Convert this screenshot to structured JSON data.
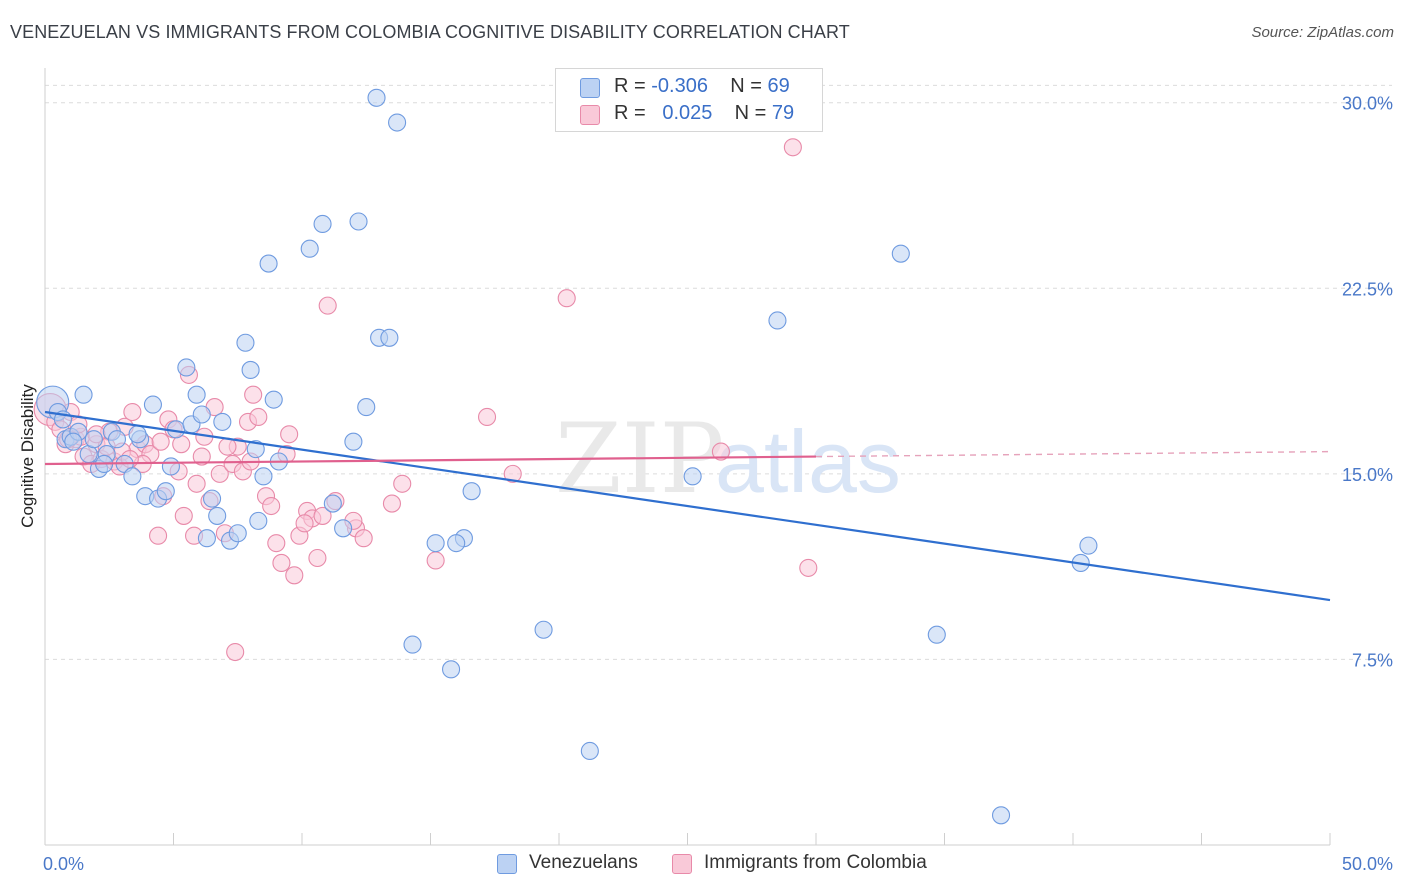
{
  "title": "VENEZUELAN VS IMMIGRANTS FROM COLOMBIA COGNITIVE DISABILITY CORRELATION CHART",
  "source": "Source: ZipAtlas.com",
  "watermark": {
    "zip": "ZIP",
    "atlas": "atlas"
  },
  "legend": {
    "r_label": "R =",
    "n_label": "N =",
    "rows": [
      {
        "r": "-0.306",
        "n": "69",
        "color": "#6f9be0",
        "fill": "#bcd2f3"
      },
      {
        "r": "0.025",
        "n": "79",
        "color": "#e88aa9",
        "fill": "#f9c9d8"
      }
    ]
  },
  "bottom_legend": [
    {
      "label": "Venezuelans",
      "fill": "#bcd2f3",
      "color": "#6f9be0"
    },
    {
      "label": "Immigrants from Colombia",
      "fill": "#f9c9d8",
      "color": "#e88aa9"
    }
  ],
  "chart_data": {
    "type": "scatter",
    "title": "VENEZUELAN VS IMMIGRANTS FROM COLOMBIA COGNITIVE DISABILITY CORRELATION CHART",
    "xlabel": "",
    "ylabel": "Cognitive Disability",
    "xlim": [
      0,
      50
    ],
    "ylim": [
      0,
      31
    ],
    "x_tick_labels": [
      "0.0%",
      "50.0%"
    ],
    "y_ticks": [
      7.5,
      15.0,
      22.5,
      30.0
    ],
    "y_tick_labels": [
      "7.5%",
      "15.0%",
      "22.5%",
      "30.0%"
    ],
    "grid": "horizontal dashed",
    "legend_placement": "top-center",
    "series": [
      {
        "name": "Venezuelans",
        "color": "#6f9be0",
        "fill": "#bcd2f3",
        "trend": {
          "x": [
            0,
            50
          ],
          "y": [
            17.5,
            9.9
          ],
          "dashed_from": null
        },
        "points": [
          [
            0.3,
            17.9
          ],
          [
            0.5,
            17.5
          ],
          [
            0.7,
            17.2
          ],
          [
            0.8,
            16.4
          ],
          [
            1.0,
            16.5
          ],
          [
            1.3,
            16.7
          ],
          [
            1.5,
            18.2
          ],
          [
            1.7,
            15.8
          ],
          [
            1.9,
            16.4
          ],
          [
            2.1,
            15.2
          ],
          [
            2.4,
            15.8
          ],
          [
            2.6,
            16.7
          ],
          [
            2.8,
            16.4
          ],
          [
            3.1,
            15.4
          ],
          [
            3.4,
            14.9
          ],
          [
            3.7,
            16.4
          ],
          [
            3.9,
            14.1
          ],
          [
            4.2,
            17.8
          ],
          [
            4.4,
            14.0
          ],
          [
            4.7,
            14.3
          ],
          [
            4.9,
            15.3
          ],
          [
            5.1,
            16.8
          ],
          [
            5.5,
            19.3
          ],
          [
            5.7,
            17.0
          ],
          [
            5.9,
            18.2
          ],
          [
            6.1,
            17.4
          ],
          [
            6.3,
            12.4
          ],
          [
            6.5,
            14.0
          ],
          [
            6.7,
            13.3
          ],
          [
            6.9,
            17.1
          ],
          [
            7.2,
            12.3
          ],
          [
            7.5,
            12.6
          ],
          [
            7.8,
            20.3
          ],
          [
            8.0,
            19.2
          ],
          [
            8.2,
            16.0
          ],
          [
            8.5,
            14.9
          ],
          [
            8.7,
            23.5
          ],
          [
            8.9,
            18.0
          ],
          [
            9.1,
            15.5
          ],
          [
            10.3,
            24.1
          ],
          [
            10.8,
            25.1
          ],
          [
            11.2,
            13.8
          ],
          [
            11.6,
            12.8
          ],
          [
            12.0,
            16.3
          ],
          [
            12.2,
            25.2
          ],
          [
            12.5,
            17.7
          ],
          [
            13.0,
            20.5
          ],
          [
            13.4,
            20.5
          ],
          [
            13.7,
            29.2
          ],
          [
            14.3,
            8.1
          ],
          [
            15.2,
            12.2
          ],
          [
            15.8,
            7.1
          ],
          [
            16.3,
            12.4
          ],
          [
            16.6,
            14.3
          ],
          [
            12.9,
            30.2
          ],
          [
            16.0,
            12.2
          ],
          [
            19.4,
            8.7
          ],
          [
            21.2,
            3.8
          ],
          [
            25.2,
            14.9
          ],
          [
            28.5,
            21.2
          ],
          [
            33.3,
            23.9
          ],
          [
            34.7,
            8.5
          ],
          [
            40.3,
            11.4
          ],
          [
            40.6,
            12.1
          ],
          [
            37.2,
            1.2
          ],
          [
            8.3,
            13.1
          ],
          [
            3.6,
            16.6
          ],
          [
            2.3,
            15.4
          ],
          [
            1.1,
            16.3
          ]
        ]
      },
      {
        "name": "Immigrants from Colombia",
        "color": "#e88aa9",
        "fill": "#f9c9d8",
        "trend": {
          "x": [
            0,
            50
          ],
          "y": [
            15.4,
            15.9
          ],
          "dashed_from": 30
        },
        "points": [
          [
            0.2,
            17.6
          ],
          [
            0.4,
            17.1
          ],
          [
            0.6,
            16.8
          ],
          [
            0.8,
            16.2
          ],
          [
            1.0,
            17.5
          ],
          [
            1.2,
            16.4
          ],
          [
            1.5,
            15.7
          ],
          [
            1.8,
            15.4
          ],
          [
            2.0,
            16.2
          ],
          [
            2.2,
            15.6
          ],
          [
            2.5,
            16.7
          ],
          [
            2.7,
            15.5
          ],
          [
            2.9,
            15.3
          ],
          [
            3.1,
            16.9
          ],
          [
            3.4,
            17.5
          ],
          [
            3.6,
            16.0
          ],
          [
            3.9,
            16.2
          ],
          [
            4.1,
            15.8
          ],
          [
            4.4,
            12.5
          ],
          [
            4.6,
            14.1
          ],
          [
            4.8,
            17.2
          ],
          [
            5.0,
            16.8
          ],
          [
            5.2,
            15.1
          ],
          [
            5.4,
            13.3
          ],
          [
            5.6,
            19.0
          ],
          [
            5.8,
            12.5
          ],
          [
            6.1,
            15.7
          ],
          [
            6.4,
            13.9
          ],
          [
            6.6,
            17.7
          ],
          [
            6.8,
            15.0
          ],
          [
            7.0,
            12.6
          ],
          [
            7.3,
            15.4
          ],
          [
            7.5,
            16.1
          ],
          [
            7.7,
            15.1
          ],
          [
            7.9,
            17.1
          ],
          [
            8.1,
            18.2
          ],
          [
            8.3,
            17.3
          ],
          [
            8.6,
            14.1
          ],
          [
            8.8,
            13.7
          ],
          [
            9.0,
            12.2
          ],
          [
            9.2,
            11.4
          ],
          [
            9.5,
            16.6
          ],
          [
            9.7,
            10.9
          ],
          [
            9.9,
            12.5
          ],
          [
            10.2,
            13.5
          ],
          [
            10.4,
            13.2
          ],
          [
            10.6,
            11.6
          ],
          [
            10.8,
            13.3
          ],
          [
            11.0,
            21.8
          ],
          [
            11.3,
            13.9
          ],
          [
            12.1,
            12.8
          ],
          [
            12.4,
            12.4
          ],
          [
            13.5,
            13.8
          ],
          [
            13.9,
            14.6
          ],
          [
            15.2,
            11.5
          ],
          [
            17.2,
            17.3
          ],
          [
            18.2,
            15.0
          ],
          [
            20.3,
            22.1
          ],
          [
            26.3,
            15.9
          ],
          [
            29.1,
            28.2
          ],
          [
            29.7,
            11.2
          ],
          [
            1.4,
            16.5
          ],
          [
            2.4,
            16.1
          ],
          [
            3.0,
            15.9
          ],
          [
            3.8,
            15.4
          ],
          [
            4.5,
            16.3
          ],
          [
            5.3,
            16.2
          ],
          [
            6.2,
            16.5
          ],
          [
            7.1,
            16.1
          ],
          [
            8.0,
            15.5
          ],
          [
            9.4,
            15.8
          ],
          [
            10.1,
            13.0
          ],
          [
            12.0,
            13.1
          ],
          [
            5.9,
            14.6
          ],
          [
            3.3,
            15.6
          ],
          [
            2.0,
            16.6
          ],
          [
            1.3,
            17.0
          ],
          [
            0.9,
            16.4
          ],
          [
            7.4,
            7.8
          ]
        ]
      }
    ]
  }
}
